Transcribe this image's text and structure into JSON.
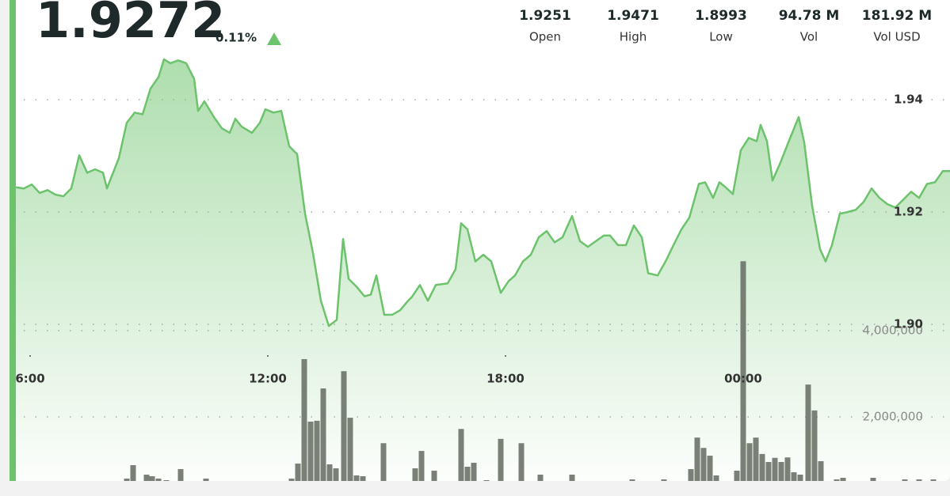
{
  "header": {
    "price": "1.9272",
    "change": "0.11%"
  },
  "stats": [
    {
      "value": "1.9251",
      "label": "Open"
    },
    {
      "value": "1.9471",
      "label": "High"
    },
    {
      "value": "1.8993",
      "label": "Low"
    },
    {
      "value": "94.78 M",
      "label": "Vol"
    },
    {
      "value": "181.92 M",
      "label": "Vol USD"
    }
  ],
  "chart_data": {
    "type": "line",
    "color": "#6cc36c",
    "x": [
      5.64,
      5.84,
      6.04,
      6.24,
      6.44,
      6.64,
      6.84,
      7.04,
      7.24,
      7.44,
      7.64,
      7.84,
      7.94,
      8.24,
      8.44,
      8.64,
      8.84,
      9.04,
      9.24,
      9.38,
      9.54,
      9.74,
      9.94,
      10.14,
      10.24,
      10.4,
      10.64,
      10.84,
      11.04,
      11.18,
      11.34,
      11.6,
      11.8,
      11.94,
      12.14,
      12.34,
      12.54,
      12.74,
      12.94,
      13.14,
      13.34,
      13.54,
      13.74,
      13.9,
      14.04,
      14.24,
      14.44,
      14.6,
      14.74,
      14.94,
      15.14,
      15.34,
      15.54,
      15.64,
      15.84,
      16.04,
      16.24,
      16.54,
      16.74,
      16.88,
      17.04,
      17.24,
      17.44,
      17.64,
      17.88,
      18.08,
      18.24,
      18.44,
      18.64,
      18.84,
      19.04,
      19.24,
      19.44,
      19.68,
      19.88,
      20.08,
      20.28,
      20.48,
      20.64,
      20.84,
      21.04,
      21.24,
      21.44,
      21.6,
      21.84,
      22.04,
      22.24,
      22.44,
      22.64,
      22.88,
      23.04,
      23.24,
      23.4,
      23.54,
      23.74,
      23.94,
      24.14,
      24.34,
      24.44,
      24.6,
      24.74,
      24.94,
      25.14,
      25.4,
      25.54,
      25.74,
      25.94,
      26.08,
      26.24,
      26.44,
      26.64,
      26.84,
      27.04,
      27.24,
      27.44,
      27.64,
      27.84,
      28.04,
      28.24,
      28.44,
      28.64,
      28.84,
      29.04,
      29.22
    ],
    "values": [
      1.9244,
      1.9242,
      1.9249,
      1.9234,
      1.9239,
      1.9231,
      1.9228,
      1.9242,
      1.9301,
      1.927,
      1.9276,
      1.927,
      1.9242,
      1.9296,
      1.9359,
      1.9377,
      1.9374,
      1.942,
      1.944,
      1.9472,
      1.9465,
      1.947,
      1.9465,
      1.9437,
      1.938,
      1.9397,
      1.9369,
      1.9349,
      1.9341,
      1.9366,
      1.9352,
      1.9341,
      1.9359,
      1.9383,
      1.9377,
      1.938,
      1.9317,
      1.9303,
      1.9197,
      1.9127,
      1.9042,
      1.8997,
      1.9008,
      1.9152,
      1.9081,
      1.9067,
      1.905,
      1.9053,
      1.9087,
      1.9017,
      1.9017,
      1.9025,
      1.9042,
      1.9049,
      1.907,
      1.9042,
      1.907,
      1.9073,
      1.9098,
      1.918,
      1.9169,
      1.9112,
      1.9124,
      1.9112,
      1.9056,
      1.9077,
      1.9087,
      1.9112,
      1.9124,
      1.9155,
      1.9166,
      1.9146,
      1.9155,
      1.9193,
      1.9148,
      1.9138,
      1.9148,
      1.9158,
      1.9158,
      1.9141,
      1.9141,
      1.9176,
      1.9155,
      1.9091,
      1.9087,
      1.9112,
      1.9141,
      1.9169,
      1.919,
      1.925,
      1.9253,
      1.9225,
      1.9253,
      1.9245,
      1.9232,
      1.931,
      1.9332,
      1.9326,
      1.9355,
      1.9326,
      1.9256,
      1.9288,
      1.9324,
      1.9369,
      1.9324,
      1.9211,
      1.9134,
      1.9112,
      1.9141,
      1.9197,
      1.92,
      1.9204,
      1.9218,
      1.9242,
      1.9225,
      1.9214,
      1.9208,
      1.9222,
      1.9236,
      1.9225,
      1.925,
      1.9253,
      1.9273,
      1.9273
    ],
    "xlim": [
      5.64,
      29.22
    ],
    "xticks": [
      {
        "value": 6,
        "label": "6:00"
      },
      {
        "value": 12,
        "label": "12:00"
      },
      {
        "value": 18,
        "label": "18:00"
      },
      {
        "value": 24,
        "label": "00:00"
      }
    ],
    "ylim": [
      1.89,
      1.95
    ],
    "yticks": [
      {
        "value": 1.9,
        "label": "1.90"
      },
      1.92,
      1.94
    ],
    "grid": true,
    "volume": {
      "type": "bar",
      "color": "#6b7268",
      "x": [
        8.44,
        8.6,
        8.94,
        9.08,
        9.24,
        9.44,
        9.8,
        10.44,
        12.6,
        12.76,
        12.92,
        13.08,
        13.24,
        13.4,
        13.56,
        13.72,
        13.92,
        14.08,
        14.24,
        14.4,
        14.92,
        15.72,
        15.88,
        16.2,
        16.88,
        17.04,
        17.2,
        17.52,
        17.88,
        18.4,
        18.88,
        19.68,
        21.2,
        22.0,
        22.68,
        22.84,
        23.0,
        23.16,
        23.32,
        23.84,
        24.0,
        24.16,
        24.32,
        24.48,
        24.64,
        24.8,
        24.96,
        25.12,
        25.28,
        25.44,
        25.64,
        25.8,
        25.96,
        26.36,
        26.52,
        27.28,
        28.08,
        28.44,
        28.8
      ],
      "values": [
        569000,
        881000,
        661000,
        624000,
        569000,
        532000,
        789000,
        569000,
        569000,
        917000,
        3340000,
        1890000,
        1910000,
        2660000,
        899000,
        807000,
        3060000,
        1980000,
        642000,
        624000,
        1390000,
        807000,
        1210000,
        752000,
        1720000,
        844000,
        936000,
        532000,
        1490000,
        1390000,
        661000,
        661000,
        550000,
        550000,
        789000,
        1520000,
        1280000,
        1100000,
        642000,
        752000,
        5610000,
        1390000,
        1520000,
        1140000,
        954000,
        1050000,
        954000,
        1060000,
        716000,
        661000,
        2750000,
        2150000,
        973000,
        550000,
        587000,
        587000,
        550000,
        550000,
        550000
      ],
      "y2lim": [
        0,
        6000000
      ],
      "y2ticks": [
        {
          "value": 2000000,
          "label": "2,000,000"
        },
        {
          "value": 4000000,
          "label": "4,000,000"
        }
      ]
    }
  }
}
